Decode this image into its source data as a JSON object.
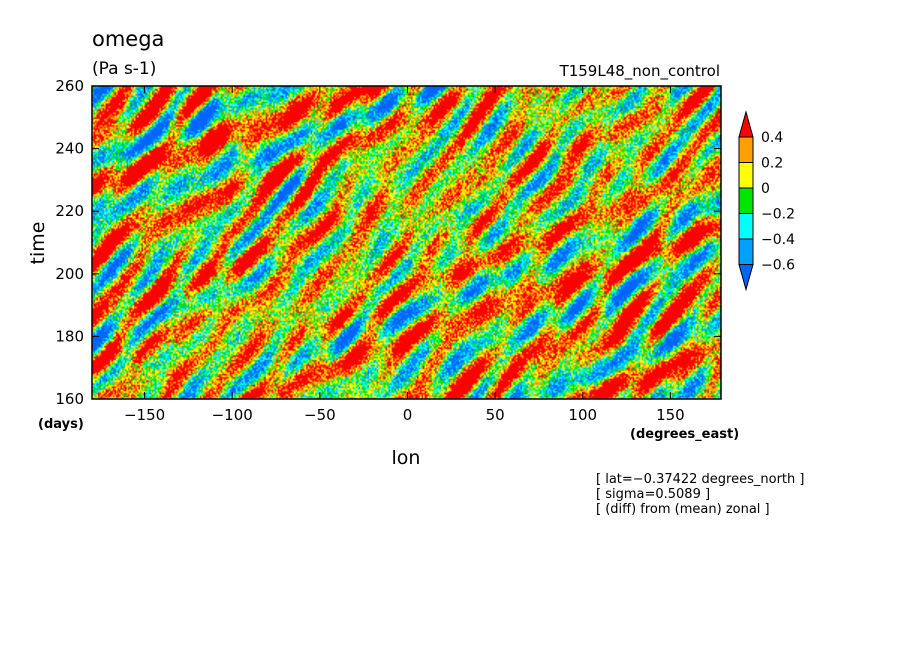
{
  "chart_data": {
    "type": "heatmap",
    "title": "omega",
    "units": "(Pa s-1)",
    "run_label": "T159L48_non_control",
    "xlabel": "lon",
    "ylabel": "time",
    "x_units": "(degrees_east)",
    "y_units": "(days)",
    "xlim": [
      -180,
      178.875
    ],
    "ylim": [
      160,
      260
    ],
    "x_ticks": [
      -150,
      -100,
      -50,
      0,
      50,
      100,
      150
    ],
    "x_tick_labels": [
      "−150",
      "−100",
      "−50",
      "0",
      "50",
      "100",
      "150"
    ],
    "y_ticks": [
      160,
      180,
      200,
      220,
      240,
      260
    ],
    "y_tick_labels": [
      "160",
      "180",
      "200",
      "220",
      "240",
      "260"
    ],
    "colorbar": {
      "levels": [
        -0.6,
        -0.4,
        -0.2,
        0,
        0.2,
        0.4
      ],
      "labels": [
        "−0.6",
        "−0.4",
        "−0.2",
        "0",
        "0.2",
        "0.4"
      ],
      "colors": [
        "#0064ff",
        "#00ffff",
        "#00e600",
        "#ffff00",
        "#ffa000",
        "#ff0000"
      ],
      "extend": "both"
    },
    "notes": [
      "[ lat=−0.37422 degrees_north ]",
      "[ sigma=0.5089 ]",
      "[ (diff) from (mean) zonal ]"
    ],
    "grid": false
  }
}
